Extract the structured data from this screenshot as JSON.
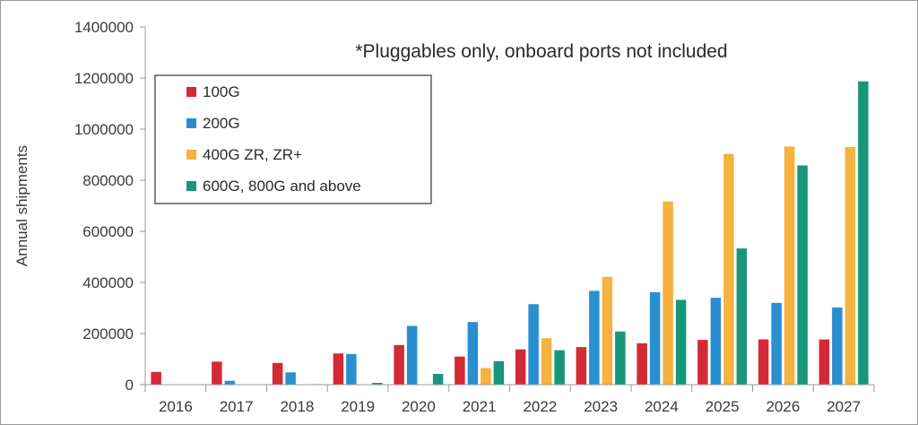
{
  "chart_data": {
    "type": "bar",
    "title": "",
    "annotation": "*Pluggables only, onboard ports not included",
    "xlabel": "",
    "ylabel": "Annual shipments",
    "ylim": [
      0,
      1400000
    ],
    "yticks": [
      0,
      200000,
      400000,
      600000,
      800000,
      1000000,
      1200000,
      1400000
    ],
    "ytick_labels": [
      "0",
      "200000",
      "400000",
      "600000",
      "800000",
      "1000000",
      "1200000",
      "1400000"
    ],
    "categories": [
      "2016",
      "2017",
      "2018",
      "2019",
      "2020",
      "2021",
      "2022",
      "2023",
      "2024",
      "2025",
      "2026",
      "2027"
    ],
    "grid": false,
    "legend_position": "top-left",
    "series": [
      {
        "name": "100G",
        "color": "#d42a35",
        "values": [
          50000,
          90000,
          85000,
          122000,
          155000,
          110000,
          138000,
          147000,
          162000,
          175000,
          177000,
          177000
        ]
      },
      {
        "name": "200G",
        "color": "#2a8fd0",
        "values": [
          0,
          15000,
          48000,
          120000,
          230000,
          245000,
          315000,
          367000,
          362000,
          340000,
          320000,
          302000
        ]
      },
      {
        "name": "400G ZR, ZR+",
        "color": "#f6b13f",
        "values": [
          0,
          0,
          0,
          0,
          0,
          65000,
          182000,
          422000,
          717000,
          903000,
          932000,
          930000
        ]
      },
      {
        "name": "600G, 800G and above",
        "color": "#17967a",
        "values": [
          0,
          0,
          2000,
          7000,
          42000,
          92000,
          135000,
          208000,
          332000,
          533000,
          858000,
          1187000
        ]
      }
    ]
  }
}
